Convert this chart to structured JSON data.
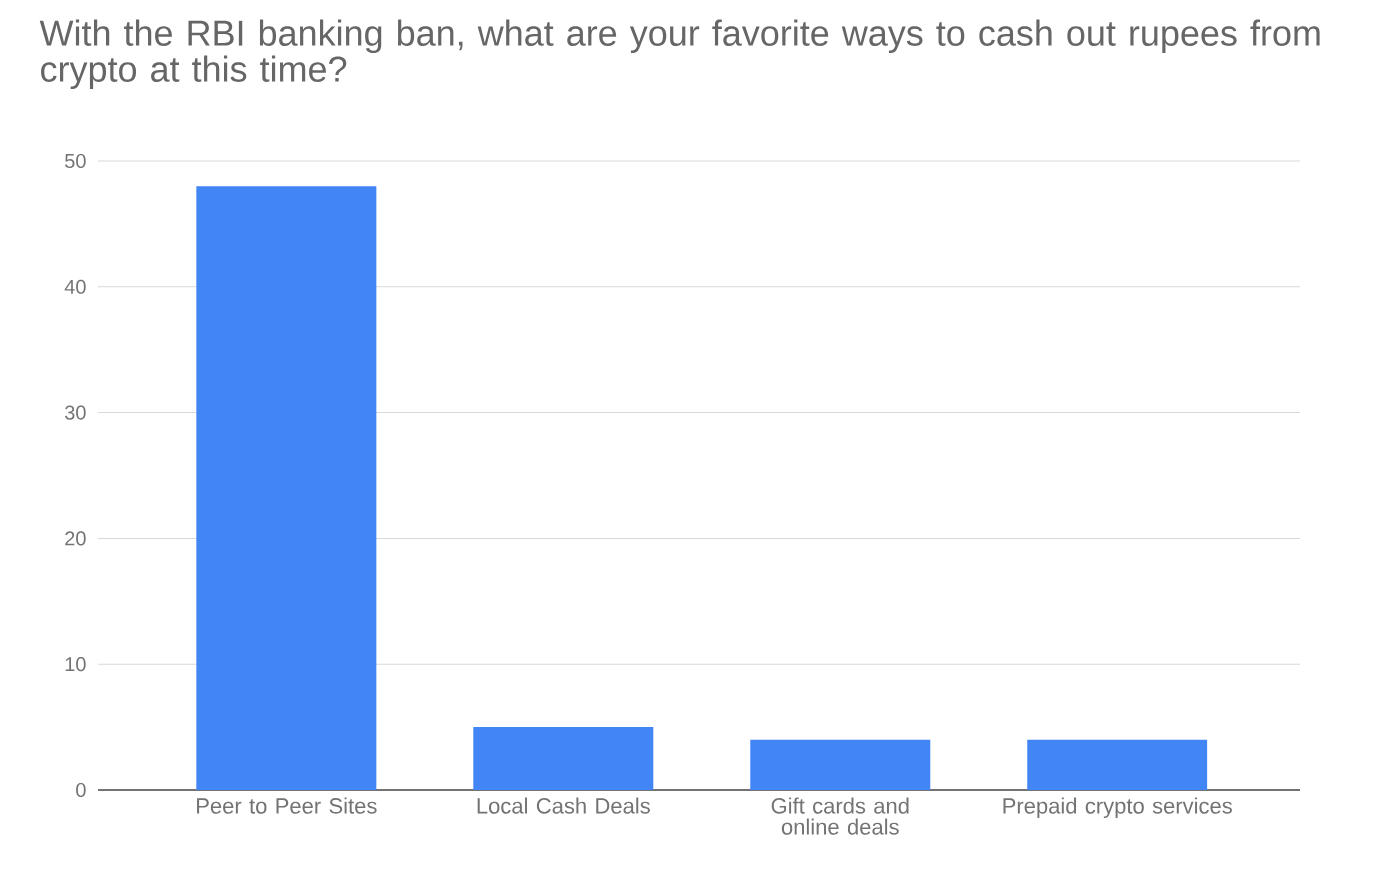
{
  "chart_data": {
    "type": "bar",
    "title": "With the RBI banking ban, what are your favorite ways to cash out rupees from crypto at this time?",
    "categories": [
      "Peer to Peer Sites",
      "Local Cash Deals",
      "Gift cards and online deals",
      "Prepaid crypto services"
    ],
    "values": [
      48,
      5,
      4,
      4
    ],
    "color": "#4285f4",
    "ylim": [
      0,
      50
    ],
    "yticks": [
      0,
      10,
      20,
      30,
      40,
      50
    ],
    "grid": "y"
  }
}
